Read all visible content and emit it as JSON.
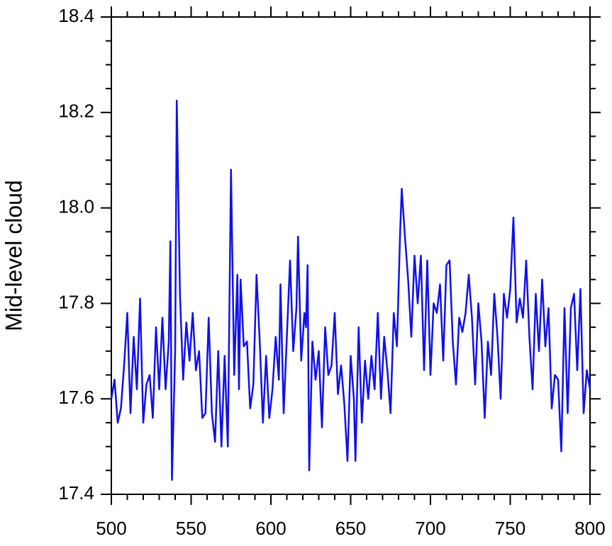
{
  "chart_data": {
    "type": "line",
    "y_label": "Mid-level cloud",
    "x": [
      500,
      502,
      504,
      506,
      508,
      510,
      512,
      514,
      516,
      518,
      520,
      522,
      524,
      526,
      528,
      530,
      532,
      534,
      536,
      537,
      538,
      540,
      541,
      543,
      545,
      547,
      549,
      551,
      553,
      555,
      557,
      559,
      561,
      563,
      565,
      567,
      569,
      571,
      573,
      575,
      577,
      579,
      580,
      581,
      583,
      585,
      587,
      589,
      591,
      593,
      595,
      597,
      599,
      601,
      603,
      605,
      606,
      608,
      610,
      612,
      614,
      616,
      617,
      619,
      621,
      622,
      623,
      624,
      626,
      628,
      630,
      632,
      634,
      636,
      638,
      640,
      642,
      644,
      646,
      648,
      650,
      652,
      653,
      655,
      657,
      659,
      661,
      663,
      665,
      667,
      669,
      671,
      673,
      675,
      677,
      679,
      681,
      682,
      684,
      686,
      688,
      690,
      692,
      694,
      696,
      698,
      700,
      702,
      704,
      706,
      708,
      710,
      712,
      714,
      716,
      718,
      720,
      722,
      724,
      726,
      728,
      730,
      732,
      734,
      736,
      738,
      740,
      742,
      744,
      746,
      748,
      750,
      752,
      754,
      756,
      758,
      760,
      762,
      764,
      766,
      768,
      770,
      772,
      774,
      776,
      778,
      780,
      782,
      784,
      786,
      788,
      790,
      792,
      794,
      796,
      798,
      800
    ],
    "series": [
      {
        "name": "mid-level cloud",
        "color": "#1010ee",
        "values": [
          17.6,
          17.64,
          17.55,
          17.58,
          17.67,
          17.78,
          17.57,
          17.73,
          17.62,
          17.81,
          17.55,
          17.63,
          17.65,
          17.56,
          17.75,
          17.62,
          17.77,
          17.62,
          17.72,
          17.93,
          17.43,
          17.7,
          18.225,
          17.82,
          17.64,
          17.76,
          17.68,
          17.78,
          17.66,
          17.7,
          17.56,
          17.57,
          17.77,
          17.57,
          17.51,
          17.7,
          17.5,
          17.69,
          17.5,
          18.08,
          17.65,
          17.86,
          17.62,
          17.85,
          17.71,
          17.72,
          17.58,
          17.63,
          17.86,
          17.72,
          17.55,
          17.69,
          17.56,
          17.62,
          17.73,
          17.64,
          17.84,
          17.57,
          17.73,
          17.89,
          17.7,
          17.79,
          17.94,
          17.68,
          17.78,
          17.75,
          17.88,
          17.45,
          17.72,
          17.64,
          17.7,
          17.54,
          17.75,
          17.65,
          17.67,
          17.78,
          17.61,
          17.67,
          17.59,
          17.47,
          17.69,
          17.6,
          17.47,
          17.75,
          17.55,
          17.68,
          17.6,
          17.69,
          17.62,
          17.78,
          17.6,
          17.73,
          17.66,
          17.57,
          17.78,
          17.71,
          17.95,
          18.04,
          17.94,
          17.85,
          17.73,
          17.9,
          17.8,
          17.9,
          17.66,
          17.89,
          17.65,
          17.8,
          17.78,
          17.84,
          17.68,
          17.88,
          17.89,
          17.72,
          17.63,
          17.77,
          17.74,
          17.78,
          17.86,
          17.77,
          17.63,
          17.8,
          17.72,
          17.56,
          17.72,
          17.65,
          17.82,
          17.73,
          17.6,
          17.82,
          17.77,
          17.83,
          17.98,
          17.76,
          17.81,
          17.77,
          17.89,
          17.73,
          17.62,
          17.82,
          17.7,
          17.85,
          17.71,
          17.79,
          17.58,
          17.65,
          17.64,
          17.49,
          17.79,
          17.57,
          17.79,
          17.82,
          17.66,
          17.83,
          17.57,
          17.66,
          17.62
        ]
      }
    ],
    "xlim": [
      500,
      800
    ],
    "xticks": [
      500,
      550,
      600,
      650,
      700,
      750,
      800
    ],
    "xminorticks": [
      510,
      520,
      530,
      540,
      560,
      570,
      580,
      590,
      610,
      620,
      630,
      640,
      660,
      670,
      680,
      690,
      710,
      720,
      730,
      740,
      760,
      770,
      780,
      790
    ],
    "ylim": [
      17.4,
      18.4
    ],
    "yticks": [
      17.4,
      17.6,
      17.8,
      {
        "value": 18,
        "label": "18.0"
      },
      18.2,
      18.4
    ],
    "yminorticks": [
      17.45,
      17.5,
      17.55,
      17.65,
      17.7,
      17.75,
      17.85,
      17.9,
      17.95,
      18.05,
      18.1,
      18.15,
      18.25,
      18.3,
      18.35
    ]
  }
}
